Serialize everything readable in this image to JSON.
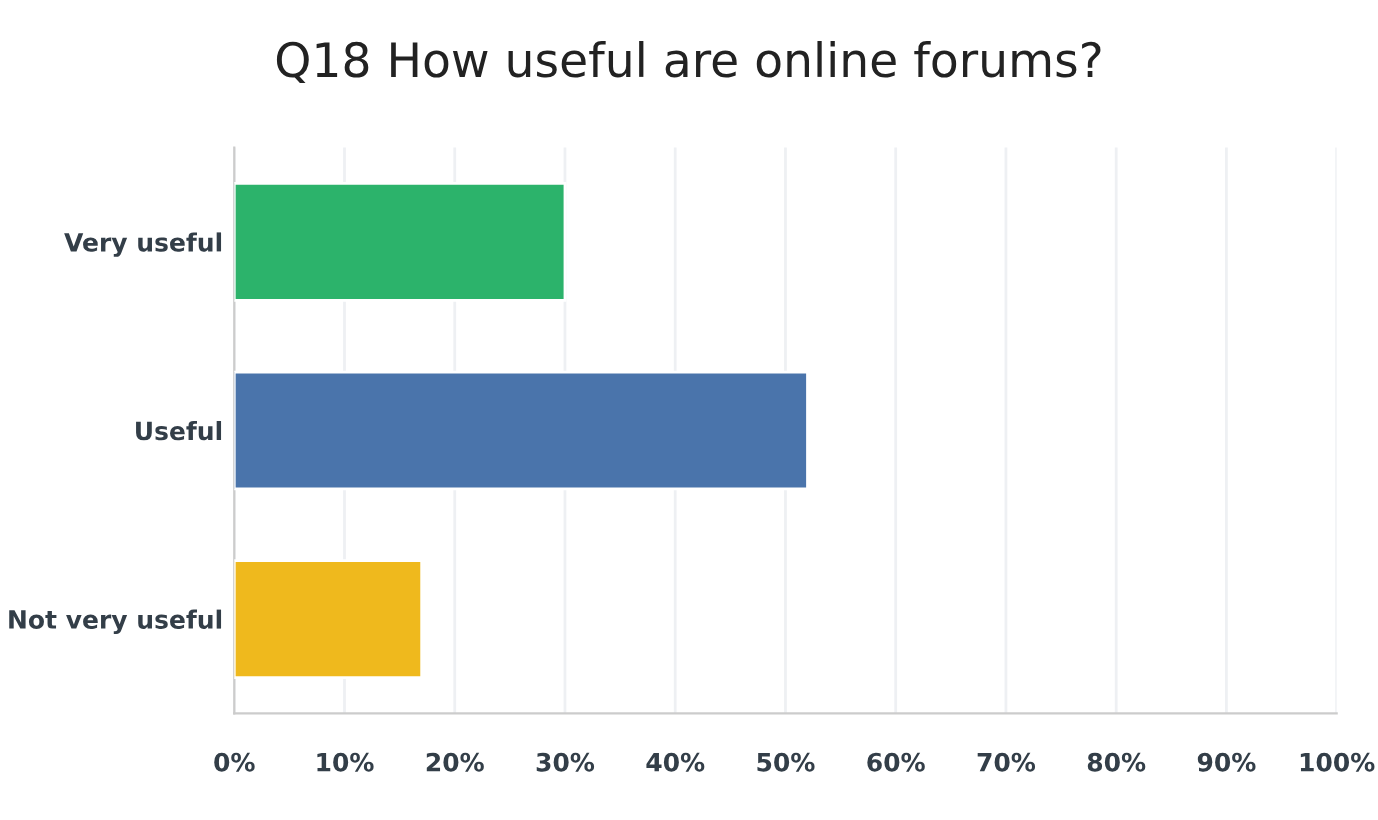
{
  "chart_data": {
    "type": "bar",
    "orientation": "horizontal",
    "title": "Q18 How useful are online forums?",
    "categories": [
      "Very useful",
      "Useful",
      "Not very useful"
    ],
    "values": [
      30,
      52,
      17
    ],
    "colors": [
      "#2cb36b",
      "#4a74ab",
      "#efb91d"
    ],
    "xlim": [
      0,
      100
    ],
    "xticks": [
      {
        "value": 0,
        "label": "0%"
      },
      {
        "value": 10,
        "label": "10%"
      },
      {
        "value": 20,
        "label": "20%"
      },
      {
        "value": 30,
        "label": "30%"
      },
      {
        "value": 40,
        "label": "40%"
      },
      {
        "value": 50,
        "label": "50%"
      },
      {
        "value": 60,
        "label": "60%"
      },
      {
        "value": 70,
        "label": "70%"
      },
      {
        "value": 80,
        "label": "80%"
      },
      {
        "value": 90,
        "label": "90%"
      },
      {
        "value": 100,
        "label": "100%"
      }
    ],
    "grid": "x"
  }
}
